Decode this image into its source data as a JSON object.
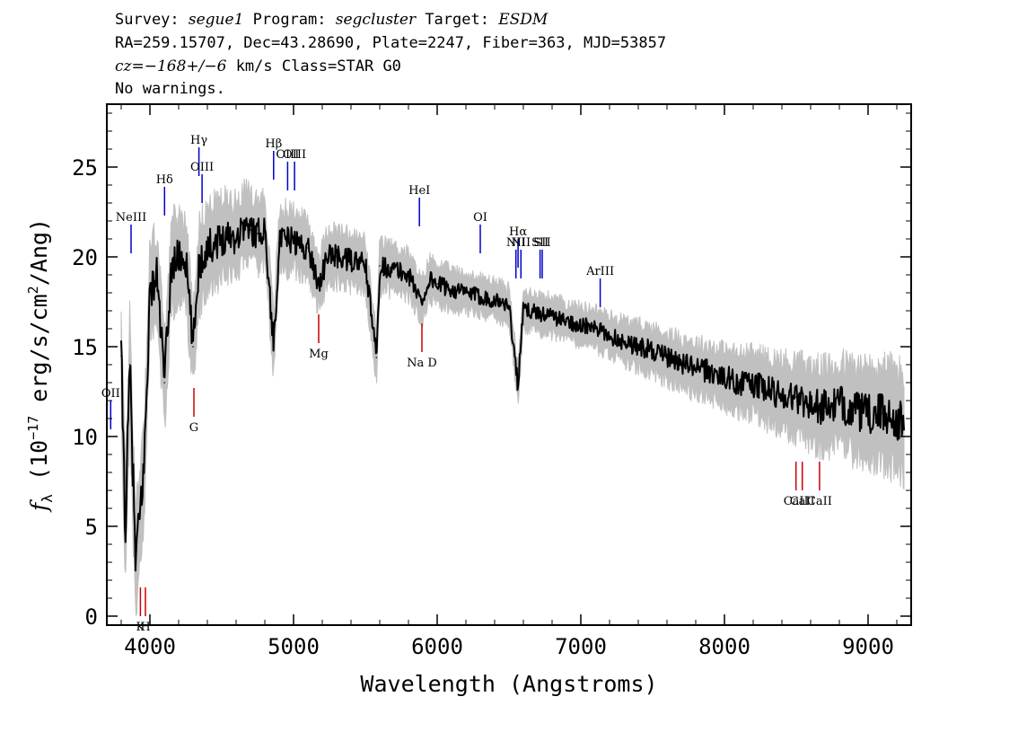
{
  "header": {
    "line1": {
      "survey_label": "Survey: ",
      "survey_value": "segue1",
      "program_label": " Program: ",
      "program_value": "segcluster",
      "target_label": " Target: ",
      "target_value": "ESDM"
    },
    "line2": "RA=259.15707, Dec=43.28690, Plate=2247, Fiber=363, MJD=53857",
    "line3": {
      "cz_label": "cz",
      "cz_value": "=−168+/−6",
      "rest": " km/s Class=STAR G0"
    },
    "line4": "No warnings."
  },
  "colors": {
    "flux": "#000000",
    "error_band": "#c0c0c0",
    "emission_line": "#0000cc",
    "absorption_line": "#cc0000",
    "axes": "#000000"
  },
  "chart_data": {
    "type": "line",
    "title": "",
    "xlabel": "Wavelength (Angstroms)",
    "ylabel_parts": {
      "symbol": "f",
      "subscript": "λ",
      "open": " (10",
      "exponent": "−17",
      "middle": " erg/s/cm",
      "exponent2": "2",
      "close": "/Ang)"
    },
    "xlim": [
      3700,
      9300
    ],
    "ylim": [
      -0.5,
      28.5
    ],
    "x_ticks": [
      4000,
      5000,
      6000,
      7000,
      8000,
      9000
    ],
    "x_tick_labels": [
      "4000",
      "5000",
      "6000",
      "7000",
      "8000",
      "9000"
    ],
    "y_ticks": [
      0,
      5,
      10,
      15,
      20,
      25
    ],
    "y_tick_labels": [
      "0",
      "5",
      "10",
      "15",
      "20",
      "25"
    ],
    "grid": false,
    "series": [
      {
        "role": "flux",
        "x": [
          3800,
          3830,
          3860,
          3900,
          3960,
          4000,
          4050,
          4101,
          4150,
          4200,
          4250,
          4300,
          4340,
          4400,
          4450,
          4500,
          4550,
          4600,
          4650,
          4700,
          4750,
          4800,
          4861,
          4900,
          4950,
          5000,
          5050,
          5100,
          5175,
          5250,
          5300,
          5400,
          5500,
          5577,
          5600,
          5700,
          5800,
          5893,
          5950,
          6000,
          6100,
          6200,
          6300,
          6400,
          6500,
          6563,
          6600,
          6700,
          6800,
          6900,
          7000,
          7100,
          7200,
          7300,
          7400,
          7500,
          7600,
          7700,
          7800,
          7900,
          8000,
          8100,
          8200,
          8300,
          8400,
          8500,
          8600,
          8700,
          8800,
          8900,
          9000,
          9100,
          9200,
          9250
        ],
        "y": [
          14.5,
          4.6,
          14.0,
          2.8,
          8.5,
          18.0,
          19.0,
          13.0,
          19.5,
          20.0,
          19.8,
          15.0,
          19.5,
          20.5,
          20.8,
          21.0,
          21.3,
          21.0,
          21.8,
          21.5,
          21.3,
          21.6,
          15.0,
          20.8,
          21.0,
          20.9,
          20.6,
          20.5,
          18.5,
          20.2,
          20.0,
          19.8,
          19.6,
          14.4,
          19.5,
          19.3,
          19.0,
          17.5,
          18.8,
          18.5,
          18.2,
          18.0,
          17.8,
          17.6,
          17.3,
          12.8,
          17.1,
          16.9,
          16.7,
          16.4,
          16.2,
          16.0,
          15.6,
          15.3,
          15.0,
          14.8,
          14.4,
          14.1,
          13.8,
          13.6,
          13.3,
          13.0,
          12.9,
          12.6,
          12.3,
          12.2,
          11.8,
          11.6,
          11.8,
          11.5,
          11.2,
          11.3,
          11.0,
          10.5
        ]
      },
      {
        "role": "error_band",
        "x": [
          3800,
          3900,
          4000,
          4200,
          4400,
          4600,
          4800,
          5000,
          5200,
          5400,
          5600,
          5800,
          6000,
          6200,
          6400,
          6600,
          6800,
          7000,
          7200,
          7400,
          7600,
          7800,
          8000,
          8200,
          8400,
          8600,
          8800,
          9000,
          9200,
          9250
        ],
        "spread": [
          3.0,
          3.0,
          2.5,
          2.3,
          2.2,
          2.0,
          1.8,
          1.6,
          1.5,
          1.4,
          1.3,
          1.2,
          1.1,
          1.0,
          1.0,
          1.0,
          1.0,
          1.0,
          1.1,
          1.2,
          1.3,
          1.4,
          1.5,
          1.7,
          1.9,
          2.1,
          2.3,
          2.5,
          2.7,
          2.8
        ]
      }
    ],
    "emission_lines": [
      {
        "label": "OII",
        "x": 3727,
        "y_label": 12.2
      },
      {
        "label": "NeIII",
        "x": 3869,
        "y_label": 22.0
      },
      {
        "label": "Hδ",
        "x": 4102,
        "y_label": 24.1
      },
      {
        "label": "Hγ",
        "x": 4341,
        "y_label": 26.3
      },
      {
        "label": "OIII",
        "x": 4363,
        "y_label": 24.8
      },
      {
        "label": "Hβ",
        "x": 4861,
        "y_label": 26.1
      },
      {
        "label": "OIII",
        "x": 4959,
        "y_label": 25.5
      },
      {
        "label": "OIII",
        "x": 5007,
        "y_label": 25.5
      },
      {
        "label": "HeI",
        "x": 5876,
        "y_label": 23.5
      },
      {
        "label": "OI",
        "x": 6300,
        "y_label": 22.0
      },
      {
        "label": "NII",
        "x": 6548,
        "y_label": 20.6
      },
      {
        "label": "Hα",
        "x": 6563,
        "y_label": 21.2
      },
      {
        "label": "NII",
        "x": 6583,
        "y_label": 20.6
      },
      {
        "label": "SII",
        "x": 6716,
        "y_label": 20.6
      },
      {
        "label": "SII",
        "x": 6731,
        "y_label": 20.6
      },
      {
        "label": "ArIII",
        "x": 7135,
        "y_label": 19.0
      }
    ],
    "absorption_lines": [
      {
        "label": "K",
        "x": 3934,
        "y_label": -0.2
      },
      {
        "label": "H",
        "x": 3969,
        "y_label": -0.2
      },
      {
        "label": "G",
        "x": 4306,
        "y_label": 10.9
      },
      {
        "label": "Mg",
        "x": 5175,
        "y_label": 15.0
      },
      {
        "label": "Na D",
        "x": 5894,
        "y_label": 14.5
      },
      {
        "label": "CaII",
        "x": 8498,
        "y_label": 6.8
      },
      {
        "label": "CaII",
        "x": 8542,
        "y_label": 6.8
      },
      {
        "label": "CaII",
        "x": 8662,
        "y_label": 6.8
      }
    ]
  }
}
